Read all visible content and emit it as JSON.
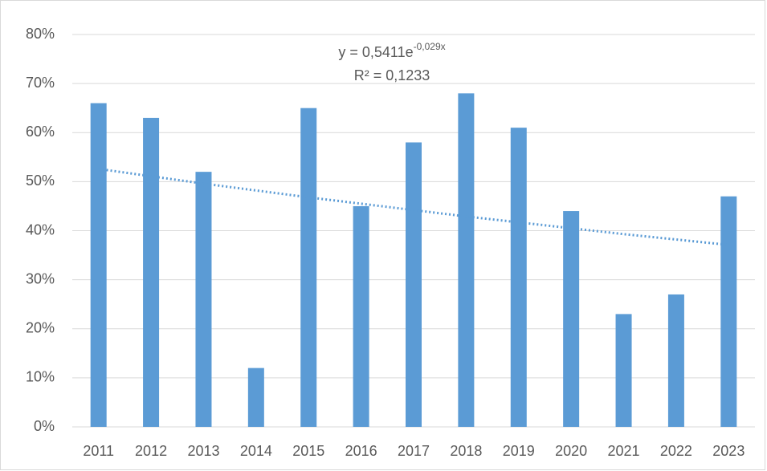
{
  "chart_data": {
    "type": "bar",
    "categories": [
      "2011",
      "2012",
      "2013",
      "2014",
      "2015",
      "2016",
      "2017",
      "2018",
      "2019",
      "2020",
      "2021",
      "2022",
      "2023"
    ],
    "values": [
      66,
      63,
      52,
      12,
      65,
      45,
      58,
      68,
      61,
      44,
      23,
      27,
      47
    ],
    "color": "#5b9bd5",
    "ylim": [
      0,
      80
    ],
    "yticks": [
      {
        "value": 0,
        "label": "0%"
      },
      {
        "value": 10,
        "label": "10%"
      },
      {
        "value": 20,
        "label": "20%"
      },
      {
        "value": 30,
        "label": "30%"
      },
      {
        "value": 40,
        "label": "40%"
      },
      {
        "value": 50,
        "label": "50%"
      },
      {
        "value": 60,
        "label": "60%"
      },
      {
        "value": 70,
        "label": "70%"
      },
      {
        "value": 80,
        "label": "80%"
      }
    ],
    "grid": true,
    "trendline": {
      "type": "exponential",
      "color": "#5b9bd5",
      "values": [
        52.6,
        51.1,
        49.6,
        48.2,
        46.8,
        45.5,
        44.2,
        42.9,
        41.7,
        40.5,
        39.3,
        38.2,
        37.1
      ],
      "equation": {
        "base": "y = 0,5411e",
        "exponent": "-0,029x"
      },
      "r_squared": "R² = 0,1233"
    }
  }
}
